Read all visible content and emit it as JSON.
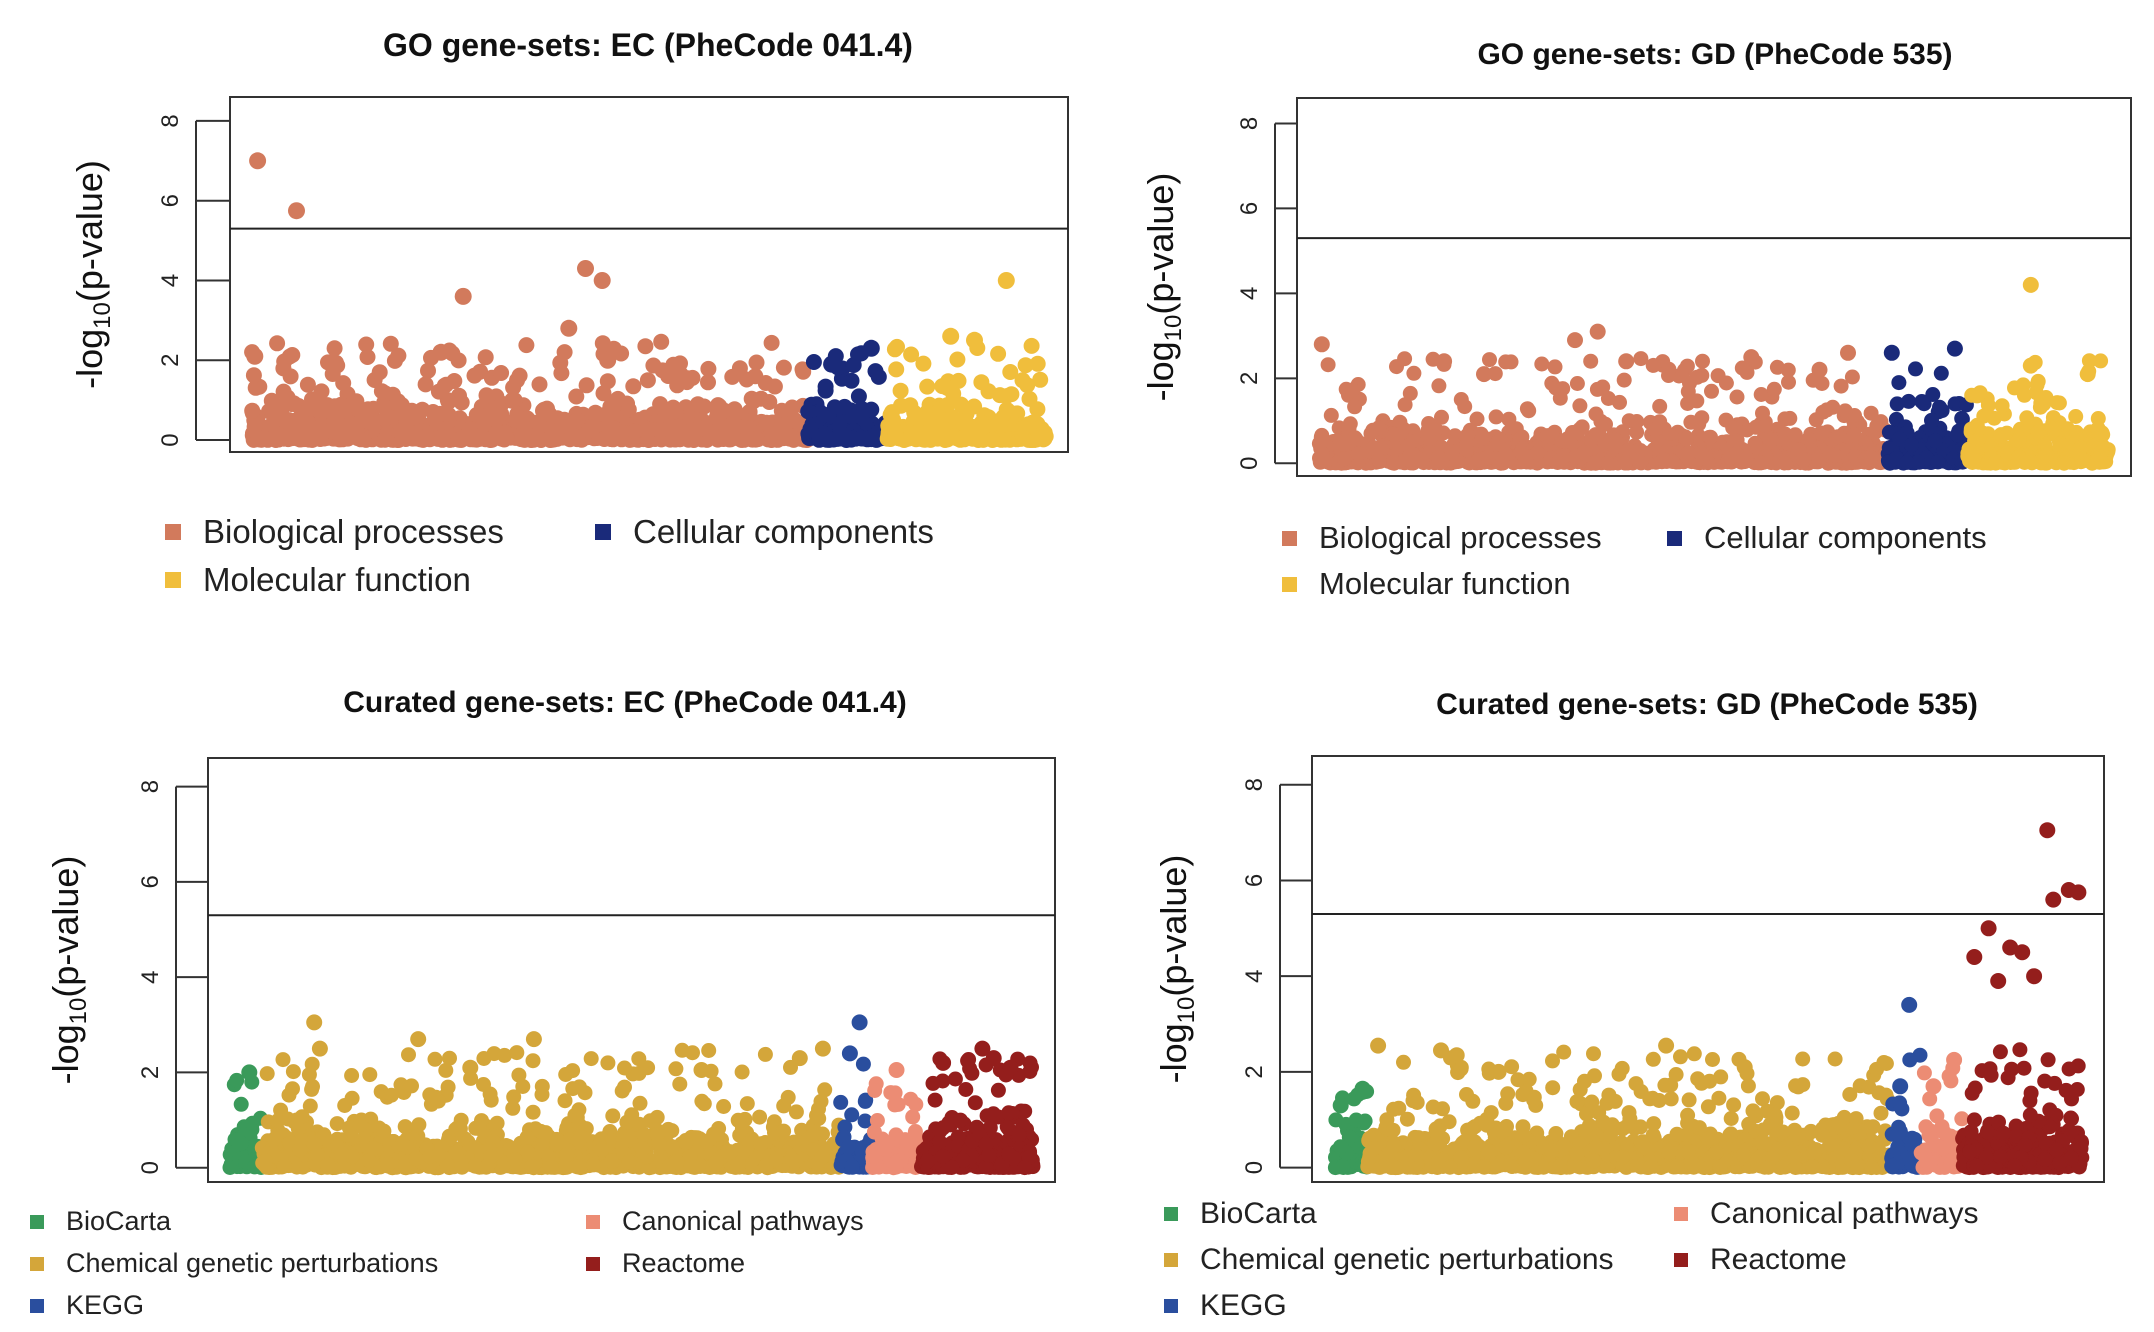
{
  "chart_data": [
    {
      "type": "scatter",
      "title": "GO gene-sets: EC (PheCode 041.4)",
      "ylabel": "-log10(p-value)",
      "ylim": [
        0,
        8
      ],
      "yticks": [
        0,
        2,
        4,
        6,
        8
      ],
      "threshold": 5.3,
      "grid": false,
      "series": [
        {
          "name": "Biological processes",
          "color": "#d27a5c",
          "count": 3400,
          "share": 0.7,
          "max_y": 7.0,
          "highlights": [
            [
              0.01,
              7.0
            ],
            [
              0.08,
              5.75
            ],
            [
              0.38,
              3.6
            ],
            [
              0.6,
              4.3
            ],
            [
              0.63,
              4.0
            ],
            [
              0.57,
              2.8
            ],
            [
              0.64,
              2.0
            ],
            [
              0.34,
              2.2
            ],
            [
              0.005,
              2.1
            ]
          ]
        },
        {
          "name": "Cellular components",
          "color": "#1a2a7a",
          "count": 500,
          "share": 0.1,
          "max_y": 2.3,
          "highlights": [
            [
              0.8,
              2.3
            ],
            [
              0.3,
              1.9
            ]
          ]
        },
        {
          "name": "Molecular function",
          "color": "#f0be3c",
          "count": 900,
          "share": 0.2,
          "max_y": 4.0,
          "highlights": [
            [
              0.75,
              4.0
            ],
            [
              0.4,
              2.6
            ],
            [
              0.55,
              2.5
            ]
          ]
        }
      ],
      "legend": {
        "placement": "bottom",
        "columns": 2
      }
    },
    {
      "type": "scatter",
      "title": "GO gene-sets: GD (PheCode 535)",
      "ylabel": "-log10(p-value)",
      "ylim": [
        0,
        8
      ],
      "yticks": [
        0,
        2,
        4,
        6,
        8
      ],
      "threshold": 5.3,
      "grid": false,
      "series": [
        {
          "name": "Biological processes",
          "color": "#d27a5c",
          "count": 3400,
          "share": 0.72,
          "max_y": 3.1,
          "highlights": [
            [
              0.005,
              2.8
            ],
            [
              0.22,
              2.4
            ],
            [
              0.29,
              2.1
            ],
            [
              0.45,
              2.9
            ],
            [
              0.49,
              3.1
            ],
            [
              0.93,
              2.6
            ],
            [
              0.88,
              2.2
            ],
            [
              0.76,
              2.5
            ],
            [
              0.54,
              2.4
            ]
          ]
        },
        {
          "name": "Cellular components",
          "color": "#1a2a7a",
          "count": 500,
          "share": 0.1,
          "max_y": 2.7,
          "highlights": [
            [
              0.05,
              2.6
            ],
            [
              0.85,
              2.7
            ]
          ]
        },
        {
          "name": "Molecular function",
          "color": "#f0be3c",
          "count": 900,
          "share": 0.18,
          "max_y": 4.2,
          "highlights": [
            [
              0.45,
              4.2
            ],
            [
              0.45,
              2.3
            ],
            [
              0.85,
              2.1
            ]
          ]
        }
      ],
      "legend": {
        "placement": "bottom",
        "columns": 2
      }
    },
    {
      "type": "scatter",
      "title": "Curated gene-sets: EC (PheCode 041.4)",
      "ylabel": "-log10(p-value)",
      "ylim": [
        0,
        8
      ],
      "yticks": [
        0,
        2,
        4,
        6,
        8
      ],
      "threshold": 5.3,
      "grid": false,
      "series": [
        {
          "name": "BioCarta",
          "color": "#3a9a5a",
          "count": 220,
          "share": 0.04,
          "max_y": 2.0,
          "highlights": [
            [
              0.6,
              2.0
            ]
          ]
        },
        {
          "name": "Chemical genetic perturbations",
          "color": "#d4a63a",
          "count": 3600,
          "share": 0.72,
          "max_y": 3.05,
          "highlights": [
            [
              0.09,
              3.05
            ],
            [
              0.1,
              2.5
            ],
            [
              0.27,
              2.7
            ],
            [
              0.47,
              2.7
            ],
            [
              0.76,
              2.05
            ],
            [
              0.93,
              2.3
            ],
            [
              0.97,
              2.5
            ],
            [
              0.36,
              2.1
            ]
          ]
        },
        {
          "name": "KEGG",
          "color": "#2a4e9e",
          "count": 180,
          "share": 0.04,
          "max_y": 3.05,
          "highlights": [
            [
              0.6,
              3.05
            ],
            [
              0.3,
              2.4
            ]
          ]
        },
        {
          "name": "Canonical pathways",
          "color": "#ec8c74",
          "count": 250,
          "share": 0.06,
          "max_y": 2.05,
          "highlights": [
            [
              0.5,
              2.05
            ]
          ]
        },
        {
          "name": "Reactome",
          "color": "#941e1c",
          "count": 900,
          "share": 0.14,
          "max_y": 2.5,
          "highlights": [
            [
              0.55,
              2.5
            ],
            [
              0.65,
              2.3
            ],
            [
              0.2,
              2.2
            ],
            [
              0.8,
              2.1
            ]
          ]
        }
      ],
      "legend": {
        "placement": "bottom",
        "columns": 2
      }
    },
    {
      "type": "scatter",
      "title": "Curated gene-sets: GD (PheCode 535)",
      "ylabel": "-log10(p-value)",
      "ylim": [
        0,
        8
      ],
      "yticks": [
        0,
        2,
        4,
        6,
        8
      ],
      "threshold": 5.3,
      "grid": false,
      "series": [
        {
          "name": "BioCarta",
          "color": "#3a9a5a",
          "count": 220,
          "share": 0.045,
          "max_y": 1.65,
          "highlights": [
            [
              0.85,
              1.65
            ],
            [
              0.2,
              1.3
            ]
          ]
        },
        {
          "name": "Chemical genetic perturbations",
          "color": "#d4a63a",
          "count": 3600,
          "share": 0.7,
          "max_y": 2.55,
          "highlights": [
            [
              0.02,
              2.55
            ],
            [
              0.14,
              2.45
            ],
            [
              0.17,
              2.35
            ],
            [
              0.57,
              2.55
            ],
            [
              0.25,
              2.0
            ],
            [
              0.72,
              2.1
            ]
          ]
        },
        {
          "name": "KEGG",
          "color": "#2a4e9e",
          "count": 180,
          "share": 0.04,
          "max_y": 3.4,
          "highlights": [
            [
              0.6,
              3.4
            ],
            [
              0.3,
              1.7
            ]
          ]
        },
        {
          "name": "Canonical pathways",
          "color": "#ec8c74",
          "count": 250,
          "share": 0.055,
          "max_y": 2.25,
          "highlights": [
            [
              0.8,
              2.25
            ],
            [
              0.3,
              1.7
            ]
          ]
        },
        {
          "name": "Reactome",
          "color": "#941e1c",
          "count": 1000,
          "share": 0.16,
          "max_y": 7.05,
          "highlights": [
            [
              0.71,
              7.05
            ],
            [
              0.76,
              5.6
            ],
            [
              0.89,
              5.8
            ],
            [
              0.97,
              5.75
            ],
            [
              0.22,
              5.0
            ],
            [
              0.4,
              4.6
            ],
            [
              0.5,
              4.5
            ],
            [
              0.1,
              4.4
            ],
            [
              0.6,
              4.0
            ],
            [
              0.3,
              3.9
            ]
          ]
        }
      ],
      "legend": {
        "placement": "bottom",
        "columns": 2
      }
    }
  ]
}
